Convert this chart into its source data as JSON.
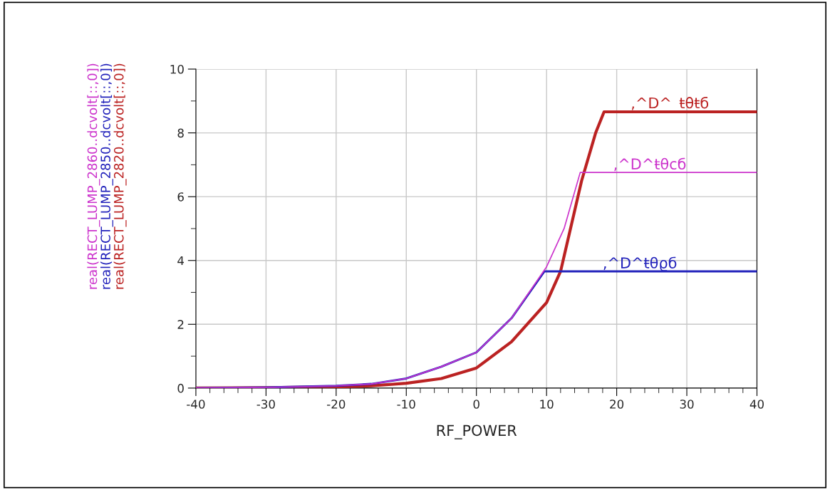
{
  "chart_data": {
    "type": "line",
    "xlabel": "RF_POWER",
    "series": [
      {
        "name": "real(RECT_LUMP_2860..dcvolt[::,0])",
        "color": "#cc33cc",
        "x": [
          -40,
          -30,
          -20,
          -15,
          -10,
          -5,
          0,
          5,
          10,
          12.5,
          14.8,
          40
        ],
        "values": [
          0,
          0.02,
          0.07,
          0.13,
          0.3,
          0.67,
          1.12,
          2.19,
          3.8,
          5.0,
          6.76,
          6.76
        ]
      },
      {
        "name": "real(RECT_LUMP_2850..dcvolt[::,0])",
        "color": "#2222bb",
        "x": [
          -40,
          -30,
          -20,
          -15,
          -10,
          -5,
          0,
          5,
          9.7,
          40
        ],
        "values": [
          0,
          0.02,
          0.07,
          0.13,
          0.3,
          0.67,
          1.12,
          2.19,
          3.66,
          3.66
        ]
      },
      {
        "name": "real(RECT_LUMP_2820..dcvolt[::,0])",
        "color": "#bb2222",
        "x": [
          -40,
          -30,
          -20,
          -15,
          -10,
          -5,
          0,
          5,
          10,
          12,
          15,
          17,
          18.2,
          40
        ],
        "values": [
          0,
          0.01,
          0.04,
          0.07,
          0.15,
          0.3,
          0.63,
          1.45,
          2.68,
          3.66,
          6.5,
          8.0,
          8.66,
          8.66
        ]
      }
    ],
    "annotations": [
      {
        "text": ",^D^_ŧθŧб",
        "x": 22,
        "y": 8.66
      },
      {
        "text": ",^D^ŧθcб",
        "x": 19.5,
        "y": 6.76
      },
      {
        "text": ",^D^ŧθϱб",
        "x": 18,
        "y": 3.66
      }
    ],
    "xlim": [
      -40,
      40
    ],
    "xticks": [
      -40,
      -30,
      -20,
      -10,
      0,
      10,
      20,
      30,
      40
    ],
    "ylim": [
      0,
      10
    ],
    "yticks": [
      0,
      2,
      4,
      6,
      8,
      10
    ],
    "grid": true,
    "legend": "left",
    "marker": "none",
    "line_style": "solid"
  }
}
